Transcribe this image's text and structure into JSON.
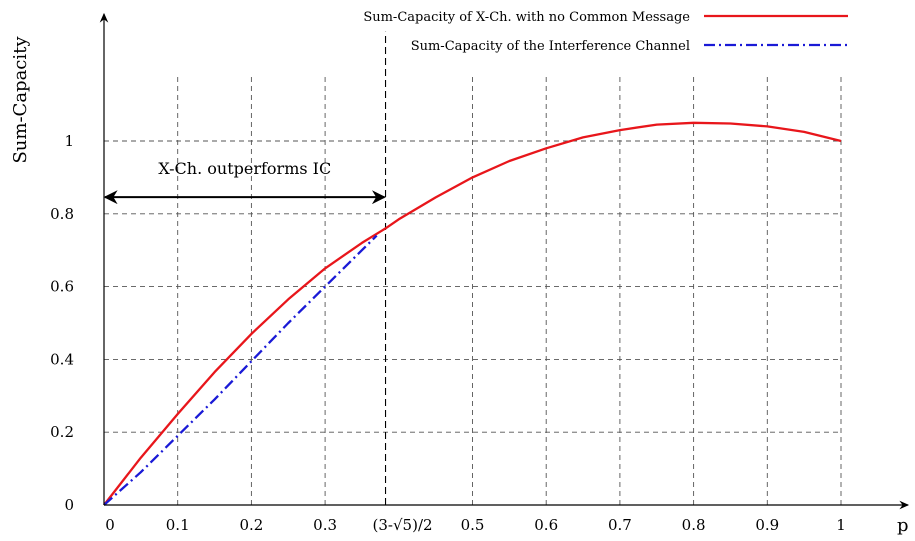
{
  "chart_data": {
    "type": "line",
    "xlabel": "p",
    "ylabel": "Sum-Capacity",
    "xlim": [
      0,
      1.08
    ],
    "ylim": [
      0,
      1.3
    ],
    "x_ticks": [
      {
        "value": 0,
        "label": "0"
      },
      {
        "value": 0.1,
        "label": "0.1"
      },
      {
        "value": 0.2,
        "label": "0.2"
      },
      {
        "value": 0.3,
        "label": "0.3"
      },
      {
        "value": 0.382,
        "label": "(3-√5)/2"
      },
      {
        "value": 0.5,
        "label": "0.5"
      },
      {
        "value": 0.6,
        "label": "0.6"
      },
      {
        "value": 0.7,
        "label": "0.7"
      },
      {
        "value": 0.8,
        "label": "0.8"
      },
      {
        "value": 0.9,
        "label": "0.9"
      },
      {
        "value": 1,
        "label": "1"
      }
    ],
    "y_ticks": [
      {
        "value": 0,
        "label": "0"
      },
      {
        "value": 0.2,
        "label": "0.2"
      },
      {
        "value": 0.4,
        "label": "0.4"
      },
      {
        "value": 0.6,
        "label": "0.6"
      },
      {
        "value": 0.8,
        "label": "0.8"
      },
      {
        "value": 1,
        "label": "1"
      }
    ],
    "grid": true,
    "legend_position": "top-right",
    "series": [
      {
        "name": "Sum-Capacity of X-Ch. with no Common Message",
        "color": "#e8161b",
        "style": "solid",
        "x": [
          0,
          0.05,
          0.1,
          0.15,
          0.2,
          0.25,
          0.3,
          0.35,
          0.382,
          0.4,
          0.45,
          0.5,
          0.55,
          0.6,
          0.65,
          0.7,
          0.75,
          0.8,
          0.85,
          0.9,
          0.95,
          1.0
        ],
        "y": [
          0,
          0.13,
          0.25,
          0.365,
          0.47,
          0.565,
          0.65,
          0.72,
          0.76,
          0.785,
          0.845,
          0.9,
          0.945,
          0.98,
          1.01,
          1.03,
          1.045,
          1.05,
          1.048,
          1.04,
          1.025,
          1.0
        ]
      },
      {
        "name": "Sum-Capacity of the Interference Channel",
        "color": "#1a1ad6",
        "style": "dash-dot",
        "x": [
          0,
          0.05,
          0.1,
          0.15,
          0.2,
          0.25,
          0.3,
          0.35,
          0.37
        ],
        "y": [
          0,
          0.09,
          0.19,
          0.29,
          0.395,
          0.5,
          0.6,
          0.7,
          0.74
        ]
      }
    ],
    "annotations": [
      {
        "text": "X-Ch. outperforms IC",
        "x_from": 0,
        "x_to": 0.382,
        "y": 0.81
      }
    ],
    "reference_lines": [
      {
        "orientation": "vertical",
        "x": 0.382
      }
    ]
  }
}
